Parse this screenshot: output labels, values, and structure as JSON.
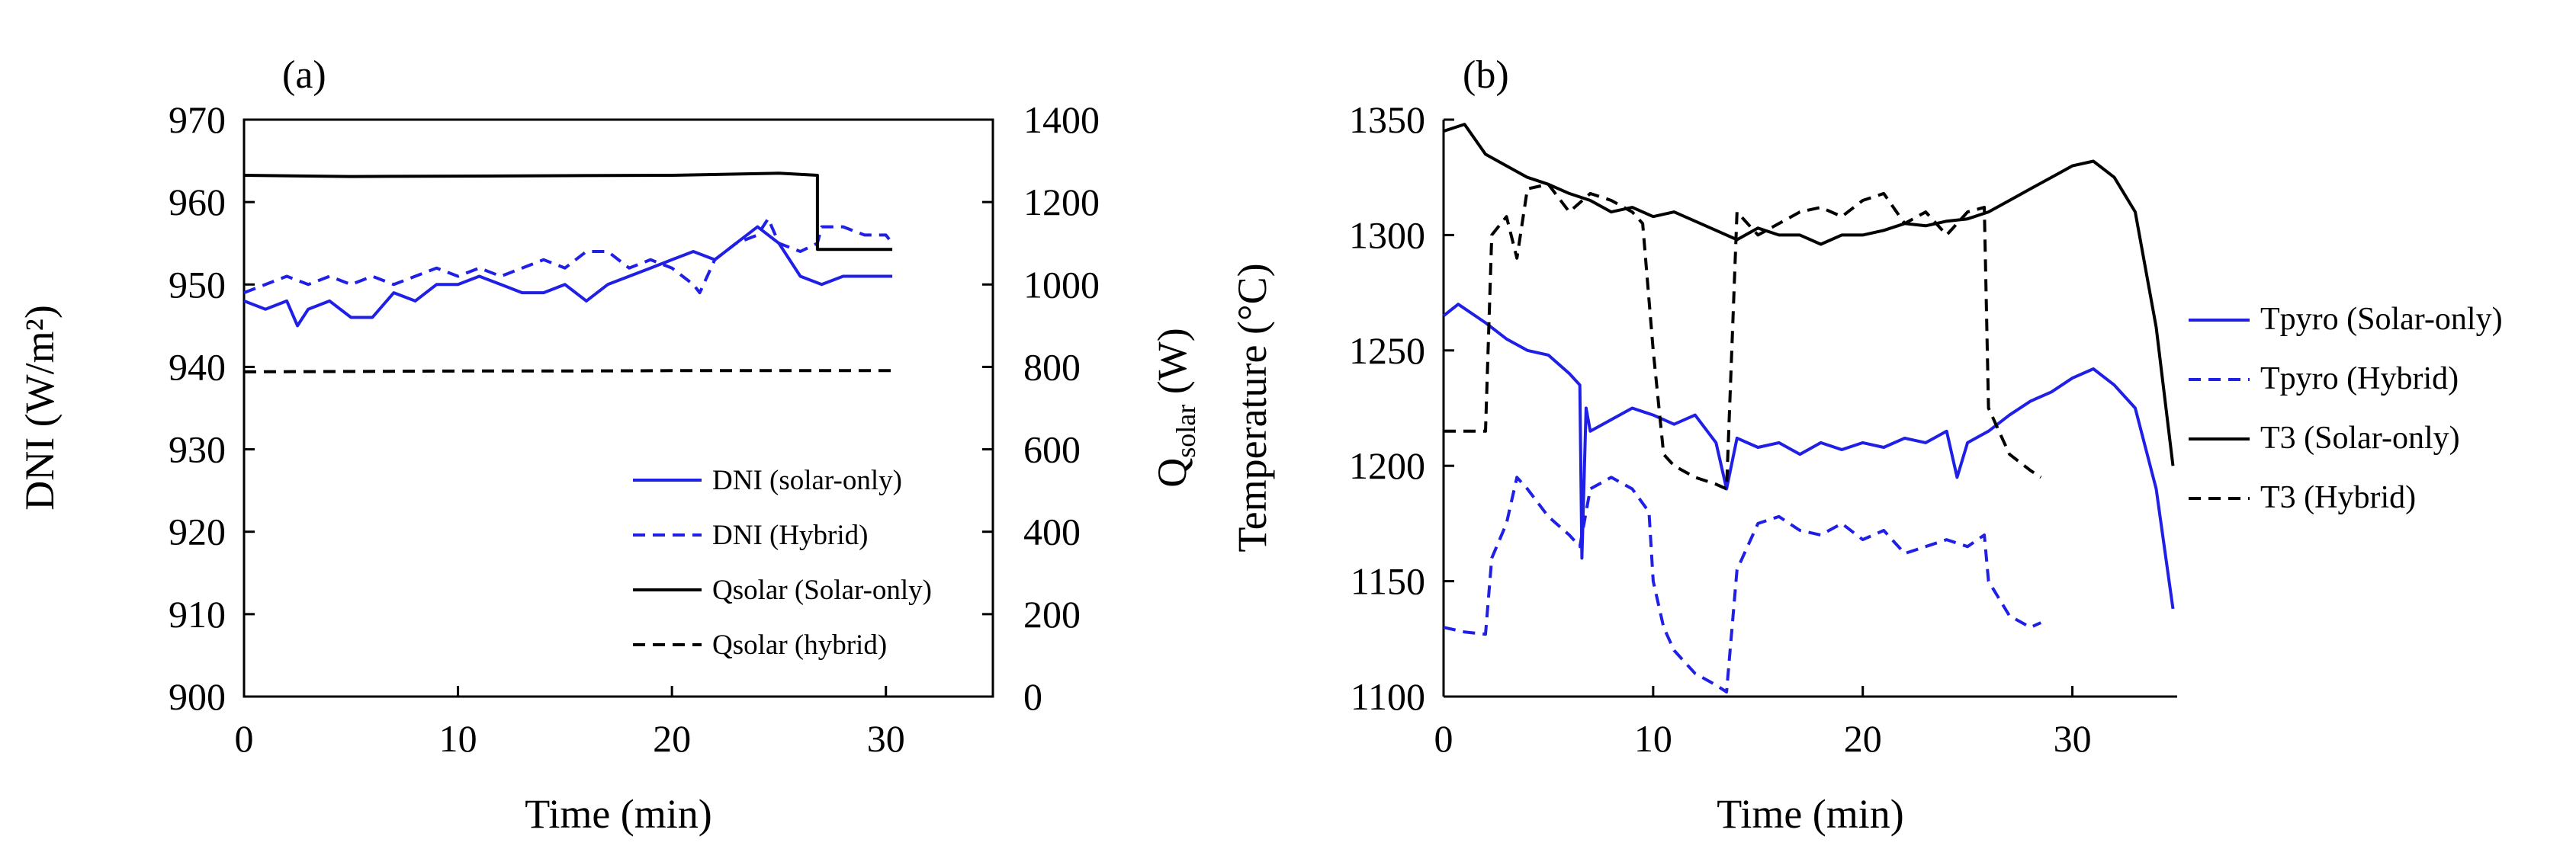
{
  "chart_data": [
    {
      "type": "line",
      "panel_label": "(a)",
      "xlabel": "Time (min)",
      "ylabel": "DNI (W/m²)",
      "ylabel_right": "Q_solar (W)",
      "ylabel_right_main": "Q",
      "ylabel_right_sub": "solar",
      "ylabel_right_unit": " (W)",
      "xlim": [
        0,
        35
      ],
      "ylim": [
        900,
        970
      ],
      "ylim_right": [
        0,
        1400
      ],
      "xticks": [
        "0",
        "10",
        "20",
        "30"
      ],
      "yticks": [
        "900",
        "910",
        "920",
        "930",
        "940",
        "950",
        "960",
        "970"
      ],
      "yticks_right": [
        "0",
        "200",
        "400",
        "600",
        "800",
        "1000",
        "1200",
        "1400"
      ],
      "legend_position": "lower-right",
      "series": [
        {
          "name": "DNI (solar-only)",
          "axis": "left",
          "color": "#1f1fe6",
          "dash": "solid",
          "x": [
            0,
            1,
            2,
            2.5,
            3,
            4,
            5,
            6,
            7,
            8,
            9,
            10,
            11,
            12,
            13,
            14,
            15,
            16,
            17,
            18,
            19,
            20,
            21,
            22,
            23,
            24,
            25,
            26,
            27,
            28,
            29,
            30,
            30.3
          ],
          "y": [
            948,
            947,
            948,
            945,
            947,
            948,
            946,
            946,
            949,
            948,
            950,
            950,
            951,
            950,
            949,
            949,
            950,
            948,
            950,
            951,
            952,
            953,
            954,
            953,
            955,
            957,
            955,
            951,
            950,
            951,
            951,
            951,
            951
          ]
        },
        {
          "name": "DNI (Hybrid)",
          "axis": "left",
          "color": "#1f1fe6",
          "dash": "dashed",
          "x": [
            0,
            1,
            2,
            3,
            4,
            5,
            6,
            7,
            8,
            9,
            10,
            11,
            12,
            13,
            14,
            15,
            16,
            17,
            18,
            19,
            20,
            21,
            21.3,
            22,
            23,
            24,
            24.5,
            25,
            26,
            26.8,
            27,
            28,
            29,
            30,
            30.3
          ],
          "y": [
            949,
            950,
            951,
            950,
            951,
            950,
            951,
            950,
            951,
            952,
            951,
            952,
            951,
            952,
            953,
            952,
            954,
            954,
            952,
            953,
            952,
            950,
            949,
            953,
            955,
            956,
            958,
            955,
            954,
            955,
            957,
            957,
            956,
            956,
            955
          ]
        },
        {
          "name": "Qsolar (Solar-only)",
          "axis": "right",
          "color": "#000000",
          "dash": "solid",
          "x": [
            0,
            5,
            10,
            15,
            20,
            25,
            26.8,
            26.8,
            27,
            30.3
          ],
          "y": [
            1265,
            1262,
            1263,
            1264,
            1265,
            1270,
            1265,
            1085,
            1085,
            1085
          ]
        },
        {
          "name": "Qsolar (hybrid)",
          "axis": "right",
          "color": "#000000",
          "dash": "dashed",
          "x": [
            0,
            5,
            10,
            15,
            20,
            25,
            30.3
          ],
          "y": [
            788,
            789,
            790,
            790,
            791,
            791,
            791
          ]
        }
      ]
    },
    {
      "type": "line",
      "panel_label": "(b)",
      "xlabel": "Time (min)",
      "ylabel": "Temperature (°C)",
      "xlim": [
        0,
        35
      ],
      "ylim": [
        1100,
        1350
      ],
      "xticks": [
        "0",
        "10",
        "20",
        "30"
      ],
      "yticks": [
        "1100",
        "1150",
        "1200",
        "1250",
        "1300",
        "1350"
      ],
      "legend_position": "right-outside",
      "series": [
        {
          "name": "Tpyro (Solar-only)",
          "color": "#1f1fe6",
          "dash": "solid",
          "x": [
            0,
            0.7,
            2,
            3,
            4,
            5,
            6,
            6.5,
            6.6,
            6.8,
            7,
            8,
            9,
            10,
            11,
            12,
            13,
            13.5,
            14,
            15,
            16,
            17,
            18,
            19,
            20,
            21,
            22,
            23,
            24,
            24.5,
            25,
            26,
            27,
            28,
            29,
            30,
            31,
            32,
            33,
            34,
            34.8
          ],
          "y": [
            1265,
            1270,
            1262,
            1255,
            1250,
            1248,
            1240,
            1235,
            1160,
            1225,
            1215,
            1220,
            1225,
            1222,
            1218,
            1222,
            1210,
            1190,
            1212,
            1208,
            1210,
            1205,
            1210,
            1207,
            1210,
            1208,
            1212,
            1210,
            1215,
            1195,
            1210,
            1215,
            1222,
            1228,
            1232,
            1238,
            1242,
            1235,
            1225,
            1190,
            1138
          ]
        },
        {
          "name": "Tpyro (Hybrid)",
          "color": "#1f1fe6",
          "dash": "dashed",
          "x": [
            0,
            1,
            2,
            2.3,
            3,
            3.5,
            4,
            5,
            6,
            6.5,
            7,
            8,
            9,
            9.8,
            10,
            10.5,
            11,
            12,
            13,
            13.5,
            14,
            15,
            16,
            17,
            18,
            19,
            20,
            21,
            22,
            23,
            24,
            25,
            25.8,
            26,
            27,
            28,
            28.5
          ],
          "y": [
            1130,
            1128,
            1127,
            1160,
            1175,
            1195,
            1190,
            1178,
            1170,
            1165,
            1190,
            1195,
            1190,
            1180,
            1150,
            1130,
            1120,
            1110,
            1105,
            1102,
            1155,
            1175,
            1178,
            1172,
            1170,
            1175,
            1168,
            1172,
            1162,
            1165,
            1168,
            1165,
            1170,
            1150,
            1135,
            1130,
            1132
          ]
        },
        {
          "name": "T3 (Solar-only)",
          "color": "#000000",
          "dash": "solid",
          "x": [
            0,
            1,
            2,
            3,
            4,
            5,
            6,
            7,
            8,
            9,
            10,
            11,
            12,
            13,
            14,
            15,
            16,
            17,
            18,
            19,
            20,
            21,
            22,
            23,
            24,
            25,
            26,
            27,
            28,
            29,
            30,
            31,
            32,
            33,
            34,
            34.8
          ],
          "y": [
            1345,
            1348,
            1335,
            1330,
            1325,
            1322,
            1318,
            1315,
            1310,
            1312,
            1308,
            1310,
            1306,
            1302,
            1298,
            1303,
            1300,
            1300,
            1296,
            1300,
            1300,
            1302,
            1305,
            1304,
            1306,
            1307,
            1310,
            1315,
            1320,
            1325,
            1330,
            1332,
            1325,
            1310,
            1260,
            1200
          ]
        },
        {
          "name": "T3 (Hybrid)",
          "color": "#000000",
          "dash": "dashed",
          "x": [
            0,
            1,
            2,
            2.3,
            3,
            3.5,
            4,
            5,
            6,
            7,
            8,
            9,
            9.5,
            10,
            10.5,
            11,
            12,
            13,
            13.5,
            14,
            15,
            16,
            17,
            18,
            19,
            20,
            21,
            22,
            23,
            24,
            25,
            25.8,
            26,
            27,
            28,
            28.5
          ],
          "y": [
            1215,
            1215,
            1215,
            1300,
            1308,
            1290,
            1320,
            1322,
            1310,
            1318,
            1315,
            1310,
            1305,
            1250,
            1205,
            1200,
            1195,
            1192,
            1190,
            1310,
            1300,
            1305,
            1310,
            1312,
            1308,
            1315,
            1318,
            1305,
            1310,
            1300,
            1310,
            1312,
            1225,
            1205,
            1198,
            1195
          ]
        }
      ]
    }
  ]
}
